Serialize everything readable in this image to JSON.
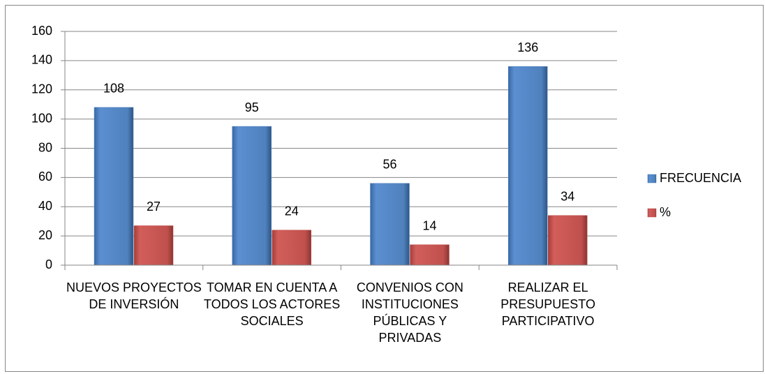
{
  "chart_data": {
    "type": "bar",
    "categories": [
      "NUEVOS PROYECTOS DE INVERSIÓN",
      "TOMAR EN CUENTA A TODOS LOS ACTORES SOCIALES",
      "CONVENIOS CON INSTITUCIONES PÚBLICAS Y PRIVADAS",
      "REALIZAR EL PRESUPUESTO PARTICIPATIVO"
    ],
    "series": [
      {
        "name": "FRECUENCIA",
        "color": "#4f81bd",
        "values": [
          108,
          95,
          56,
          136
        ]
      },
      {
        "name": "%",
        "color": "#c0504d",
        "values": [
          27,
          24,
          14,
          34
        ]
      }
    ],
    "ylim": [
      0,
      160
    ],
    "yticks": [
      0,
      20,
      40,
      60,
      80,
      100,
      120,
      140,
      160
    ],
    "grid": true,
    "legend": "right"
  }
}
